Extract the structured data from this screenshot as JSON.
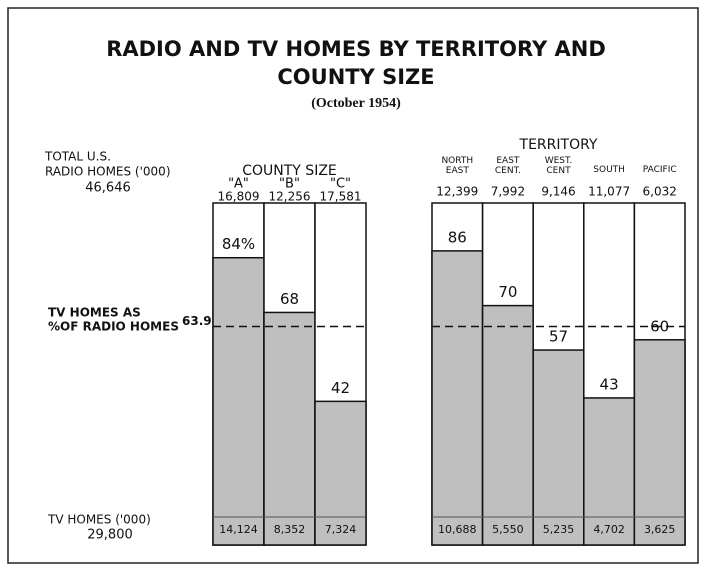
{
  "chart_data": {
    "type": "bar",
    "title": "RADIO AND TV HOMES BY TERRITORY AND",
    "title_line2": "COUNTY SIZE",
    "subtitle": "(October 1954)",
    "ylim": [
      0,
      100
    ],
    "color": "#bfbfbf",
    "radio_label": [
      "TOTAL U.S.",
      "RADIO HOMES ('000)"
    ],
    "radio_total": 46646,
    "radio_total_label": "46,646",
    "reference": {
      "lines": [
        "TV HOMES AS",
        "%OF RADIO HOMES"
      ],
      "value": 63.9
    },
    "tv_label": "TV HOMES ('000)",
    "tv_total": 29800,
    "tv_total_label": "29,800",
    "groups": [
      {
        "title": "COUNTY SIZE",
        "categories": [
          "\"A\"",
          "\"B\"",
          "\"C\""
        ],
        "radio_homes": [
          16809,
          12256,
          17581
        ],
        "radio_homes_labels": [
          "16,809",
          "12,256",
          "17,581"
        ],
        "values": [
          84,
          68,
          42
        ],
        "value_labels": [
          "84%",
          "68",
          "42"
        ],
        "tv_homes": [
          14124,
          8352,
          7324
        ],
        "tv_homes_labels": [
          "14,124",
          "8,352",
          "7,324"
        ]
      },
      {
        "title": "TERRITORY",
        "categories": [
          "NORTH EAST",
          "EAST CENT.",
          "WEST. CENT",
          "SOUTH",
          "PACIFIC"
        ],
        "radio_homes": [
          12399,
          7992,
          9146,
          11077,
          6032
        ],
        "radio_homes_labels": [
          "12,399",
          "7,992",
          "9,146",
          "11,077",
          "6,032"
        ],
        "values": [
          86,
          70,
          57,
          43,
          60
        ],
        "tv_homes": [
          10688,
          5550,
          5235,
          4702,
          3625
        ],
        "tv_homes_labels": [
          "10,688",
          "5,550",
          "5,235",
          "4,702",
          "3,625"
        ]
      }
    ]
  }
}
